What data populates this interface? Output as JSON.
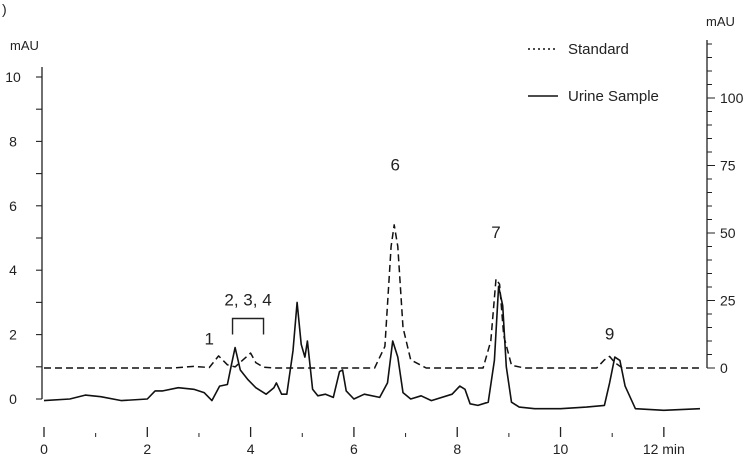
{
  "panel_label": ")",
  "chart_data": {
    "type": "line",
    "title": "",
    "xlabel": "",
    "x_unit": "min",
    "xlim": [
      0,
      12.7
    ],
    "x_ticks": [
      "0",
      "2",
      "4",
      "6",
      "8",
      "10",
      "12 min"
    ],
    "left_axis": {
      "unit": "mAU",
      "range": [
        0,
        10
      ],
      "ticks": [
        "0",
        "2",
        "4",
        "6",
        "8",
        "10"
      ]
    },
    "right_axis": {
      "unit": "mAU",
      "range": [
        0,
        100
      ],
      "ticks": [
        "0",
        "25",
        "50",
        "75",
        "100"
      ]
    },
    "legend_position": "top-right",
    "grid": false,
    "series": [
      {
        "name": "Standard",
        "line_style": "dotted",
        "axis": "right",
        "x": [
          0.0,
          2.5,
          2.9,
          3.2,
          3.38,
          3.55,
          3.7,
          3.85,
          4.0,
          4.1,
          4.25,
          4.45,
          6.4,
          6.6,
          6.72,
          6.78,
          6.85,
          6.95,
          7.1,
          7.4,
          8.5,
          8.65,
          8.75,
          8.82,
          8.9,
          9.05,
          9.3,
          10.7,
          10.85,
          10.95,
          11.05,
          11.2,
          12.7
        ],
        "y": [
          0,
          0,
          0.6,
          0.2,
          4.5,
          1.2,
          0.4,
          3.0,
          5.5,
          2.0,
          0.3,
          0,
          0,
          8,
          45,
          53,
          45,
          15,
          3,
          0,
          0,
          10,
          33,
          31,
          12,
          1,
          0,
          0,
          3,
          4.3,
          2,
          0,
          0
        ]
      },
      {
        "name": "Urine Sample",
        "line_style": "solid",
        "axis": "left",
        "x": [
          0.0,
          0.5,
          0.8,
          1.1,
          1.5,
          2.0,
          2.15,
          2.3,
          2.6,
          2.9,
          3.1,
          3.25,
          3.4,
          3.55,
          3.62,
          3.7,
          3.8,
          3.95,
          4.1,
          4.3,
          4.45,
          4.5,
          4.6,
          4.7,
          4.82,
          4.9,
          4.98,
          5.05,
          5.1,
          5.2,
          5.3,
          5.45,
          5.6,
          5.72,
          5.78,
          5.85,
          6.0,
          6.2,
          6.5,
          6.65,
          6.75,
          6.85,
          6.95,
          7.1,
          7.3,
          7.5,
          7.9,
          8.05,
          8.15,
          8.25,
          8.4,
          8.6,
          8.72,
          8.8,
          8.88,
          8.95,
          9.05,
          9.2,
          9.5,
          10.0,
          10.5,
          10.85,
          10.95,
          11.05,
          11.15,
          11.25,
          11.45,
          12.0,
          12.7
        ],
        "y": [
          -0.05,
          0.0,
          0.12,
          0.07,
          -0.05,
          0.0,
          0.25,
          0.25,
          0.35,
          0.3,
          0.2,
          -0.05,
          0.4,
          0.45,
          1.0,
          1.6,
          0.9,
          0.6,
          0.35,
          0.15,
          0.35,
          0.5,
          0.15,
          0.15,
          1.5,
          3.0,
          1.7,
          1.3,
          1.8,
          0.3,
          0.1,
          0.15,
          0.05,
          0.85,
          0.9,
          0.25,
          0.0,
          0.15,
          0.05,
          0.5,
          1.8,
          1.3,
          0.2,
          0.0,
          0.1,
          -0.05,
          0.15,
          0.4,
          0.3,
          -0.15,
          -0.2,
          -0.1,
          1.2,
          3.5,
          2.9,
          1.0,
          -0.1,
          -0.25,
          -0.3,
          -0.3,
          -0.25,
          -0.2,
          0.5,
          1.3,
          1.2,
          0.4,
          -0.3,
          -0.35,
          -0.3
        ]
      }
    ],
    "annotations": [
      {
        "text": "1",
        "x": 3.2,
        "y": 1.7
      },
      {
        "text": "2, 3, 4",
        "x": 3.95,
        "y": 2.9
      },
      {
        "text": "6",
        "x": 6.8,
        "y": 7.1
      },
      {
        "text": "7",
        "x": 8.75,
        "y": 5.0
      },
      {
        "text": "9",
        "x": 10.95,
        "y": 1.85
      }
    ],
    "bracket": {
      "x_start": 3.65,
      "x_end": 4.25,
      "y": 2.5
    }
  }
}
